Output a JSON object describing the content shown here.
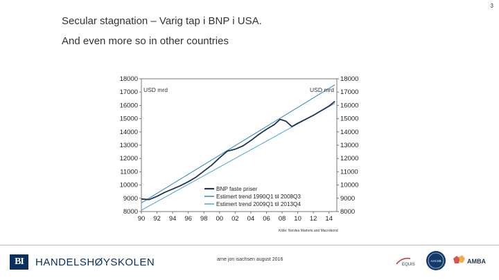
{
  "page_number": "3",
  "title": "Secular stagnation – Varig tap i BNP i USA.",
  "subtitle": "And even more so in other countries",
  "footer": {
    "institution": "HANDELSHØYSKOLEN",
    "logo_letters": "BI",
    "presenter": "arne jon isachsen august 2016",
    "accreditations": [
      "EQUIS",
      "AACSB",
      "AMBA"
    ]
  },
  "chart_data": {
    "type": "line",
    "left_unit_label": "USD mrd",
    "right_unit_label": "USD mrd",
    "source": "Kilde: Nordea Markets and Macrobond",
    "x_ticks": [
      "90",
      "92",
      "94",
      "96",
      "98",
      "00",
      "02",
      "04",
      "06",
      "08",
      "10",
      "12",
      "14"
    ],
    "x_range": [
      1990,
      2015
    ],
    "ylim": [
      8000,
      18000
    ],
    "y_ticks": [
      8000,
      9000,
      10000,
      11000,
      12000,
      13000,
      14000,
      15000,
      16000,
      17000,
      18000
    ],
    "grid": false,
    "legend_position": "bottom-right",
    "series": [
      {
        "name": "BNP faste priser",
        "color": "#1f3550",
        "x": [
          1990,
          1991,
          1992,
          1993,
          1994,
          1995,
          1996,
          1997,
          1998,
          1999,
          2000,
          2001,
          2002,
          2003,
          2004,
          2005,
          2006,
          2007,
          2007.75,
          2008.5,
          2009.25,
          2010,
          2011,
          2012,
          2013,
          2014,
          2014.75
        ],
        "y": [
          8950,
          8900,
          9150,
          9450,
          9700,
          9950,
          10250,
          10600,
          11050,
          11500,
          12050,
          12550,
          12700,
          12950,
          13350,
          13800,
          14200,
          14550,
          14950,
          14800,
          14400,
          14650,
          14950,
          15250,
          15600,
          15950,
          16300
        ]
      },
      {
        "name": "Estimert trend 1990Q1 til 2008Q3",
        "color": "#3a8fc0",
        "x": [
          1990,
          2014.75
        ],
        "y": [
          8650,
          17550
        ]
      },
      {
        "name": "Estimert trend 2009Q1 til 2013Q4",
        "color": "#5aa8d2",
        "x": [
          1990,
          2014.75
        ],
        "y": [
          8100,
          16150
        ]
      }
    ]
  }
}
